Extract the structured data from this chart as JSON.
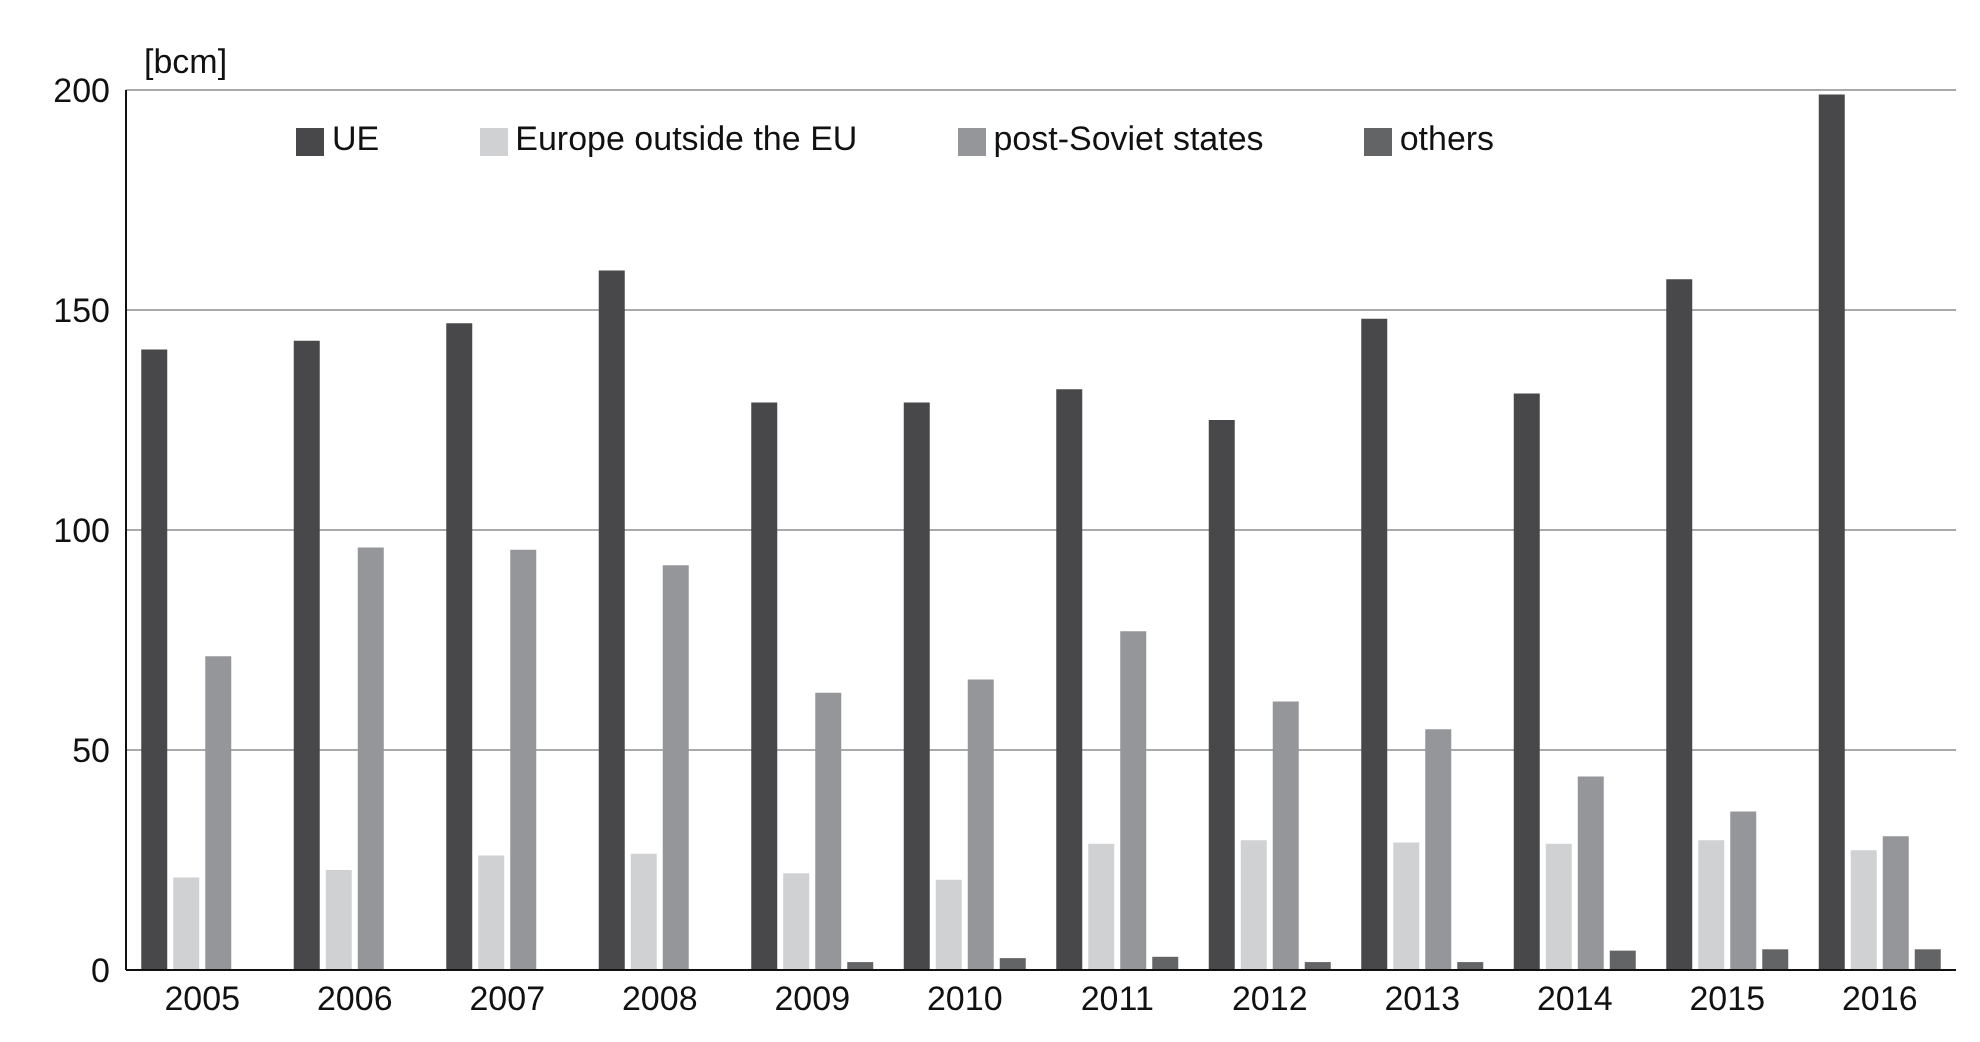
{
  "chart_data": {
    "type": "bar",
    "ylabel": "[bcm]",
    "categories": [
      "2005",
      "2006",
      "2007",
      "2008",
      "2009",
      "2010",
      "2011",
      "2012",
      "2013",
      "2014",
      "2015",
      "2016"
    ],
    "series": [
      {
        "name": "UE",
        "color": "#48484a",
        "values": [
          141,
          143,
          147,
          159,
          129,
          129,
          132,
          125,
          148,
          131,
          157,
          199
        ]
      },
      {
        "name": "Europe outside the EU",
        "color": "#d0d1d3",
        "values": [
          21,
          22.7,
          26,
          26.4,
          22,
          20.5,
          28.7,
          29.5,
          29,
          28.7,
          29.5,
          27.2
        ]
      },
      {
        "name": "post-Soviet states",
        "color": "#95969a",
        "values": [
          71.3,
          96,
          95.5,
          92,
          63,
          66,
          77,
          61,
          54.7,
          44,
          36,
          30.4
        ]
      },
      {
        "name": "others",
        "color": "#636466",
        "values": [
          null,
          null,
          null,
          null,
          1.8,
          2.7,
          3,
          1.8,
          1.8,
          4.4,
          4.7,
          4.7
        ]
      }
    ],
    "ylim": [
      0,
      200
    ],
    "yticks": [
      0,
      50,
      100,
      150,
      200
    ],
    "grid": "y",
    "legend": "top"
  }
}
